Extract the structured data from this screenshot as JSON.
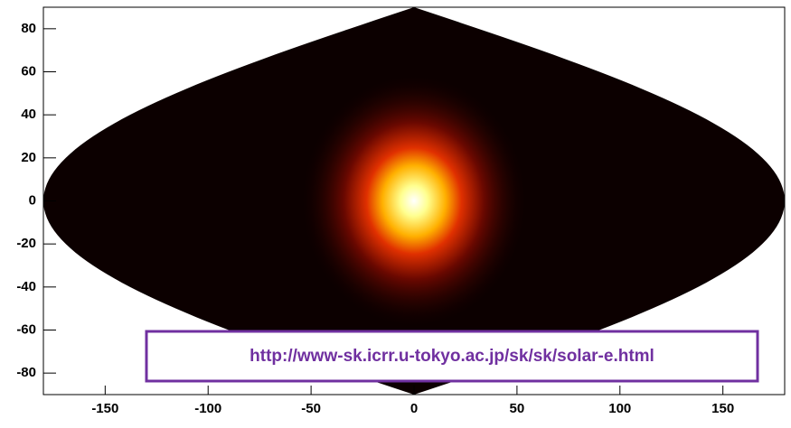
{
  "chart_data": {
    "type": "heatmap",
    "x": [
      0
    ],
    "y": [
      0
    ],
    "xlim": [
      -180,
      180
    ],
    "ylim": [
      -90,
      90
    ],
    "xticks": [
      -150,
      -100,
      -50,
      0,
      50,
      100,
      150
    ],
    "yticks": [
      -80,
      -60,
      -40,
      -20,
      0,
      20,
      40,
      60,
      80
    ],
    "annotation": "http://www-sk.icrr.u-tokyo.ac.jp/sk/sk/solar-e.html",
    "color": "#7030a0"
  }
}
